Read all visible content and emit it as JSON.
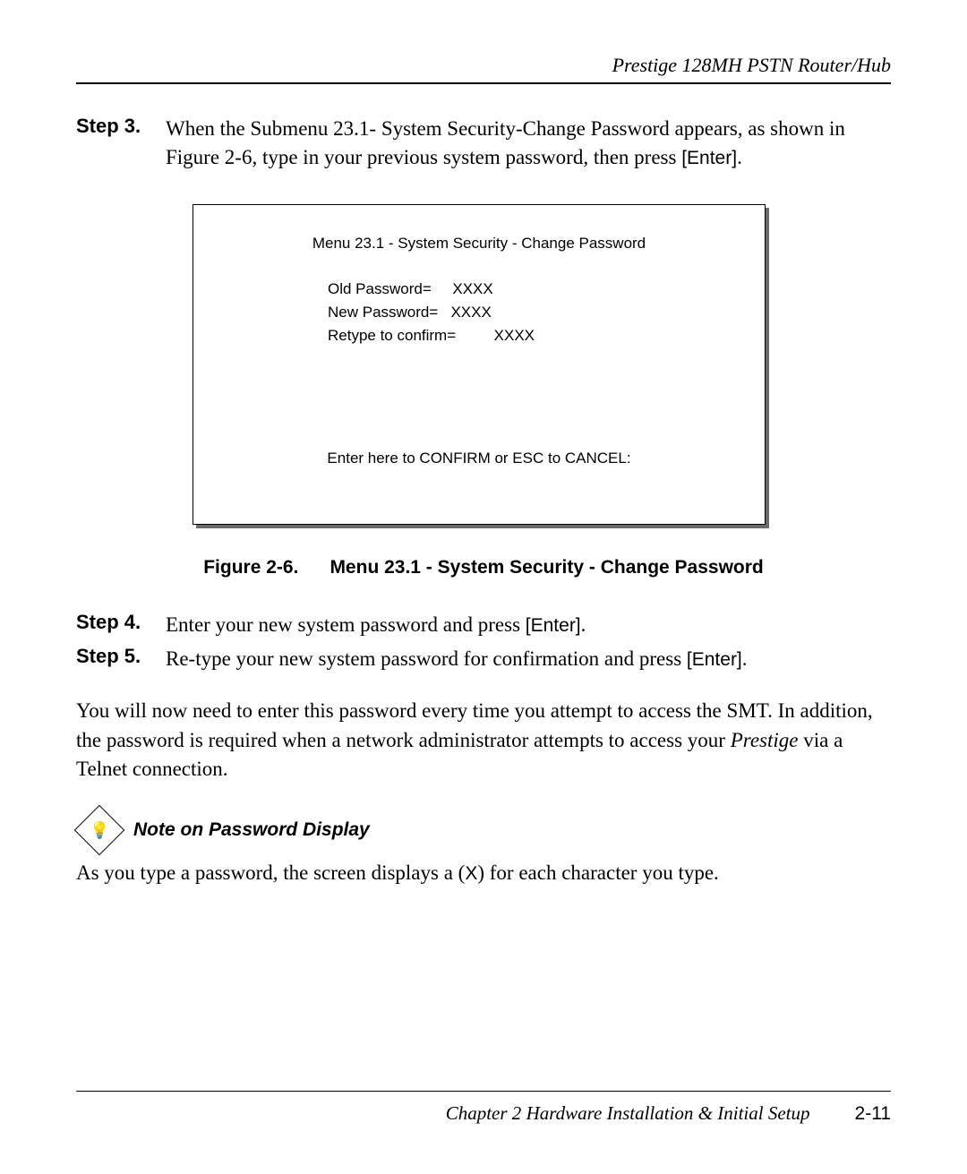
{
  "header": {
    "title": "Prestige 128MH    PSTN Router/Hub"
  },
  "steps": {
    "s3": {
      "label": "Step 3.",
      "text_a": "When the Submenu 23.1- System Security-Change Password appears, as shown in Figure 2-6, type in your previous system password, then press ",
      "enter": "[Enter]",
      "text_b": "."
    },
    "s4": {
      "label": "Step 4.",
      "text_a": "Enter your new system password and press ",
      "enter": "[Enter]",
      "text_b": "."
    },
    "s5": {
      "label": "Step 5.",
      "text_a": "Re-type your new system password for confirmation and press ",
      "enter": "[Enter]",
      "text_b": "."
    }
  },
  "screen": {
    "title": "Menu 23.1 - System Security - Change Password",
    "line1": "Old Password=     XXXX",
    "line2": "New Password=   XXXX",
    "line3": "Retype to confirm=         XXXX",
    "confirm": "Enter here to CONFIRM or ESC to CANCEL:"
  },
  "figure": {
    "label": "Figure 2-6.",
    "caption": "Menu 23.1 - System Security - Change Password"
  },
  "para": {
    "p1a": "You will now need to enter this password every time you attempt to access the SMT. In addition, the password is required when a network administrator attempts to access your ",
    "p1i": "Prestige",
    "p1b": " via a Telnet connection."
  },
  "note": {
    "title": "Note on Password Display",
    "body_a": "As you type a password, the screen displays a (",
    "x": "X",
    "body_b": ") for each character you type."
  },
  "footer": {
    "chapnum": "Chapter 2",
    "chaptitle": " Hardware Installation & Initial Setup",
    "pagenum": "2-11"
  }
}
